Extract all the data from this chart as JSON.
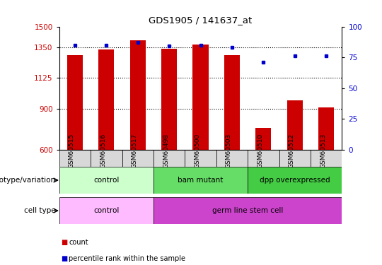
{
  "title": "GDS1905 / 141637_at",
  "samples": [
    "GSM60515",
    "GSM60516",
    "GSM60517",
    "GSM60498",
    "GSM60500",
    "GSM60503",
    "GSM60510",
    "GSM60512",
    "GSM60513"
  ],
  "counts": [
    1290,
    1330,
    1400,
    1335,
    1370,
    1290,
    760,
    960,
    910
  ],
  "percentiles": [
    85,
    85,
    87,
    84,
    85,
    83,
    71,
    76,
    76
  ],
  "ylim_left": [
    600,
    1500
  ],
  "ylim_right": [
    0,
    100
  ],
  "yticks_left": [
    600,
    900,
    1125,
    1350,
    1500
  ],
  "yticks_right": [
    0,
    25,
    50,
    75,
    100
  ],
  "grid_yticks": [
    900,
    1125,
    1350
  ],
  "bar_color": "#cc0000",
  "dot_color": "#0000cc",
  "genotype_groups": [
    {
      "label": "control",
      "start": 0,
      "end": 2,
      "color": "#ccffcc"
    },
    {
      "label": "bam mutant",
      "start": 3,
      "end": 5,
      "color": "#66dd66"
    },
    {
      "label": "dpp overexpressed",
      "start": 6,
      "end": 8,
      "color": "#44cc44"
    }
  ],
  "celltype_groups": [
    {
      "label": "control",
      "start": 0,
      "end": 2,
      "color": "#ffbbff"
    },
    {
      "label": "germ line stem cell",
      "start": 3,
      "end": 8,
      "color": "#cc44cc"
    }
  ],
  "row_label_genotype": "genotype/variation",
  "row_label_celltype": "cell type",
  "legend_count_color": "#cc0000",
  "legend_pct_color": "#0000cc",
  "legend_count_label": "count",
  "legend_pct_label": "percentile rank within the sample"
}
